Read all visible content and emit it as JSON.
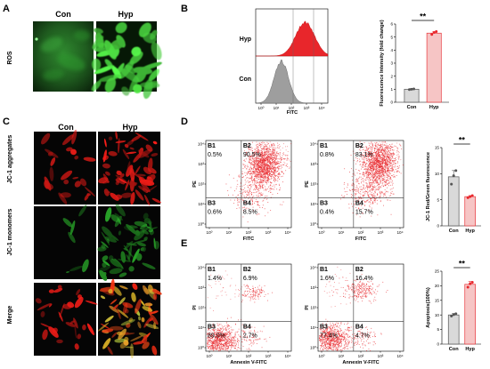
{
  "panels": {
    "a": {
      "label": "A",
      "cols": [
        "Con",
        "Hyp"
      ],
      "row": "ROS"
    },
    "b": {
      "label": "B",
      "hist_rows": [
        "Hyp",
        "Con"
      ],
      "hist_xlabel": "FITC",
      "hist_ticks": [
        "10⁰",
        "10¹",
        "10²",
        "10³",
        "10⁴"
      ]
    },
    "c": {
      "label": "C",
      "cols": [
        "Con",
        "Hyp"
      ],
      "rows": [
        "JC-1 aggregates",
        "JC-1 monomers",
        "Merge"
      ]
    },
    "d": {
      "label": "D",
      "xlabel": "FITC",
      "ylabel": "PE",
      "ticks": [
        "10⁰",
        "10¹",
        "10²",
        "10³",
        "10⁴"
      ],
      "plots": [
        {
          "q": {
            "b1": "0.5%",
            "b2": "90.5%",
            "b3": "0.6%",
            "b4": "8.5%"
          }
        },
        {
          "q": {
            "b1": "0.8%",
            "b2": "83.1%",
            "b3": "0.4%",
            "b4": "15.7%"
          }
        }
      ]
    },
    "e": {
      "label": "E",
      "xlabel": "Annexin V-FITC",
      "ylabel": "PI",
      "ticks": [
        "10⁰",
        "10¹",
        "10²",
        "10³",
        "10⁴"
      ],
      "plots": [
        {
          "q": {
            "b1": "1.4%",
            "b2": "6.9%",
            "b3": "89.0%",
            "b4": "2.7%"
          }
        },
        {
          "q": {
            "b1": "1.6%",
            "b2": "16.4%",
            "b3": "77.4%",
            "b4": "4.7%"
          }
        }
      ]
    }
  },
  "quad_names": {
    "b1": "B1",
    "b2": "B2",
    "b3": "B3",
    "b4": "B4"
  },
  "colors": {
    "con": "#d9d9d9",
    "hyp": "#f6c5c5",
    "hyp_edge": "#e8383d",
    "dot": "#e8262b",
    "ros_green": "#3fcf3f",
    "jc_red": "#e52420",
    "jc_green": "#37b537"
  },
  "chart_data": [
    {
      "type": "bar",
      "panel": "B",
      "ylabel": "Fluorescence Intensity (fold change)",
      "categories": [
        "Con",
        "Hyp"
      ],
      "values": [
        1.0,
        5.3
      ],
      "errors": [
        0.05,
        0.1
      ],
      "points": [
        [
          0.97,
          1.0,
          1.02
        ],
        [
          5.2,
          5.35,
          5.42
        ]
      ],
      "ylim": [
        0,
        6
      ],
      "yticks": [
        0,
        1,
        2,
        3,
        4,
        5,
        6
      ],
      "significance": "**"
    },
    {
      "type": "bar",
      "panel": "D",
      "ylabel": "JC-1 Red/Green fluorescence",
      "categories": [
        "Con",
        "Hyp"
      ],
      "values": [
        9.4,
        5.6
      ],
      "errors": [
        1.2,
        0.2
      ],
      "points": [
        [
          8.0,
          9.6,
          10.6
        ],
        [
          5.4,
          5.6,
          5.8
        ]
      ],
      "ylim": [
        0,
        15
      ],
      "yticks": [
        0,
        5,
        10,
        15
      ],
      "significance": "**"
    },
    {
      "type": "bar",
      "panel": "E",
      "ylabel": "Apoptosis(100%)",
      "categories": [
        "Con",
        "Hyp"
      ],
      "values": [
        10.0,
        20.5
      ],
      "errors": [
        0.5,
        1.0
      ],
      "points": [
        [
          9.6,
          10.1,
          10.4
        ],
        [
          19.5,
          20.7,
          21.2
        ]
      ],
      "ylim": [
        0,
        25
      ],
      "yticks": [
        0,
        5,
        10,
        15,
        20,
        25
      ],
      "significance": "**"
    }
  ]
}
